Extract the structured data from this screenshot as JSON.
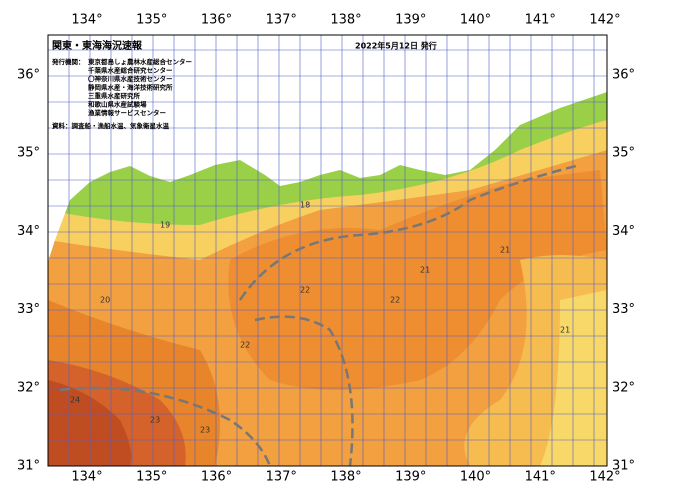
{
  "header": {
    "title": "関東・東海海況速報",
    "date": "2022年5月12日 発行"
  },
  "issuers": {
    "label": "発行機関：",
    "names": [
      "東京都島しょ農林水産総合センター",
      "千葉県水産総合研究センター",
      "〇神奈川県水産技術センター",
      "静岡県水産・海洋技術研究所",
      "三重県水産研究所",
      "和歌山県水産試験場",
      "漁業情報サービスセンター"
    ]
  },
  "source": "資料：調査船・漁船水温、気象衛星水温",
  "axes": {
    "longitude": [
      "134°",
      "135°",
      "136°",
      "137°",
      "138°",
      "139°",
      "140°",
      "141°",
      "142°"
    ],
    "latitude": [
      "36°",
      "35°",
      "34°",
      "33°",
      "32°",
      "31°"
    ]
  },
  "contour_labels": [
    "24",
    "23",
    "22",
    "21",
    "20",
    "22",
    "21",
    "23",
    "22",
    "21",
    "19",
    "18"
  ]
}
